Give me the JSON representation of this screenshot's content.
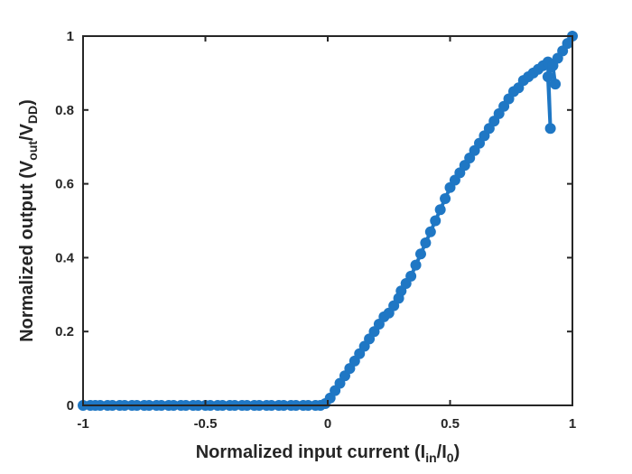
{
  "chart_data": {
    "type": "line",
    "xlim": [
      -1,
      1
    ],
    "ylim": [
      0,
      1
    ],
    "x_ticks": [
      {
        "value": -1,
        "label": "-1"
      },
      {
        "value": -0.5,
        "label": "-0.5"
      },
      {
        "value": 0,
        "label": "0"
      },
      {
        "value": 0.5,
        "label": "0.5"
      },
      {
        "value": 1,
        "label": "1"
      }
    ],
    "y_ticks": [
      {
        "value": 0,
        "label": "0"
      },
      {
        "value": 0.2,
        "label": "0.2"
      },
      {
        "value": 0.4,
        "label": "0.4"
      },
      {
        "value": 0.6,
        "label": "0.6"
      },
      {
        "value": 0.8,
        "label": "0.8"
      },
      {
        "value": 1,
        "label": "1"
      }
    ],
    "xlabel": {
      "main": "Normalized input current (I",
      "sub1": "in",
      "mid": "/I",
      "sub2": "0",
      "end": ")"
    },
    "ylabel": {
      "main": "Normalized output (V",
      "sub1": "out",
      "mid": "/V",
      "sub2": "DD",
      "end": ")"
    },
    "grid": false,
    "series_color": "#1f77c4",
    "axis_color": "#262626",
    "series": [
      {
        "x": [
          -1,
          -0.97,
          -0.95,
          -0.93,
          -0.9,
          -0.88,
          -0.85,
          -0.83,
          -0.8,
          -0.78,
          -0.75,
          -0.73,
          -0.7,
          -0.68,
          -0.65,
          -0.63,
          -0.6,
          -0.58,
          -0.55,
          -0.53,
          -0.5,
          -0.48,
          -0.45,
          -0.43,
          -0.4,
          -0.38,
          -0.35,
          -0.33,
          -0.3,
          -0.28,
          -0.25,
          -0.23,
          -0.2,
          -0.18,
          -0.15,
          -0.13,
          -0.1,
          -0.08,
          -0.05,
          -0.03,
          -0.01,
          0.01,
          0.03,
          0.05,
          0.07,
          0.09,
          0.11,
          0.13,
          0.15,
          0.17,
          0.19,
          0.21,
          0.23,
          0.25,
          0.27,
          0.29,
          0.3,
          0.32,
          0.34,
          0.36,
          0.38,
          0.4,
          0.42,
          0.44,
          0.46,
          0.48,
          0.5,
          0.52,
          0.54,
          0.56,
          0.58,
          0.6,
          0.62,
          0.64,
          0.66,
          0.68,
          0.7,
          0.72,
          0.74,
          0.76,
          0.78,
          0.8,
          0.82,
          0.84,
          0.86,
          0.88,
          0.9,
          0.91,
          0.9,
          0.92,
          0.93,
          0.92,
          0.94,
          0.96,
          0.98,
          1.0
        ],
        "y": [
          0,
          0,
          0,
          0,
          0,
          0,
          0,
          0,
          0,
          0,
          0,
          0,
          0,
          0,
          0,
          0,
          0,
          0,
          0,
          0,
          0,
          0,
          0,
          0,
          0,
          0,
          0,
          0,
          0,
          0,
          0,
          0,
          0,
          0,
          0,
          0,
          0,
          0,
          0,
          0,
          0.005,
          0.02,
          0.04,
          0.06,
          0.08,
          0.1,
          0.12,
          0.14,
          0.16,
          0.18,
          0.2,
          0.22,
          0.24,
          0.25,
          0.27,
          0.29,
          0.31,
          0.33,
          0.35,
          0.38,
          0.41,
          0.44,
          0.47,
          0.5,
          0.53,
          0.56,
          0.59,
          0.61,
          0.63,
          0.65,
          0.67,
          0.69,
          0.71,
          0.73,
          0.75,
          0.77,
          0.79,
          0.81,
          0.83,
          0.85,
          0.86,
          0.88,
          0.89,
          0.9,
          0.91,
          0.92,
          0.93,
          0.75,
          0.89,
          0.92,
          0.87,
          0.92,
          0.94,
          0.96,
          0.98,
          1.0
        ]
      }
    ]
  }
}
